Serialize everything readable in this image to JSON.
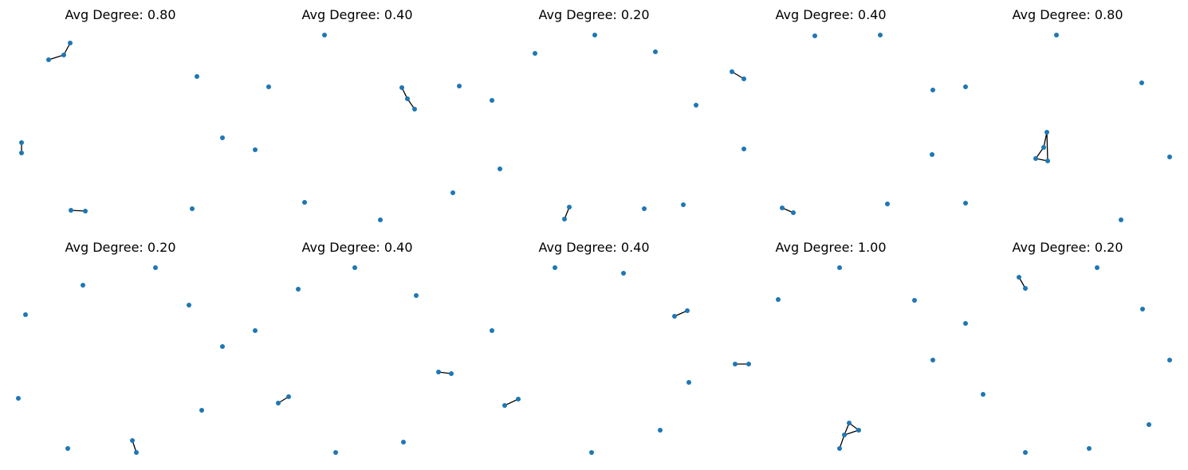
{
  "colors": {
    "node": "#1f77b4",
    "edge": "#000000",
    "background": "#ffffff"
  },
  "panels": [
    {
      "title": "Avg Degree: 0.80"
    },
    {
      "title": "Avg Degree: 0.40"
    },
    {
      "title": "Avg Degree: 0.20"
    },
    {
      "title": "Avg Degree: 0.40"
    },
    {
      "title": "Avg Degree: 0.80"
    },
    {
      "title": "Avg Degree: 0.20"
    },
    {
      "title": "Avg Degree: 0.40"
    },
    {
      "title": "Avg Degree: 0.40"
    },
    {
      "title": "Avg Degree: 1.00"
    },
    {
      "title": "Avg Degree: 0.20"
    }
  ]
}
